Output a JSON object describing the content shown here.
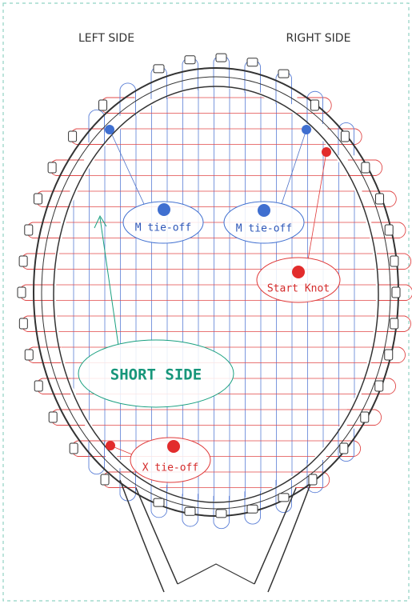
{
  "labels": {
    "left_side": "LEFT SIDE",
    "right_side": "RIGHT SIDE",
    "m_tie_off_left": "M tie-off",
    "m_tie_off_right": "M tie-off",
    "start_knot": "Start Knot",
    "short_side": "SHORT SIDE",
    "x_tie_off": "X tie-off"
  }
}
